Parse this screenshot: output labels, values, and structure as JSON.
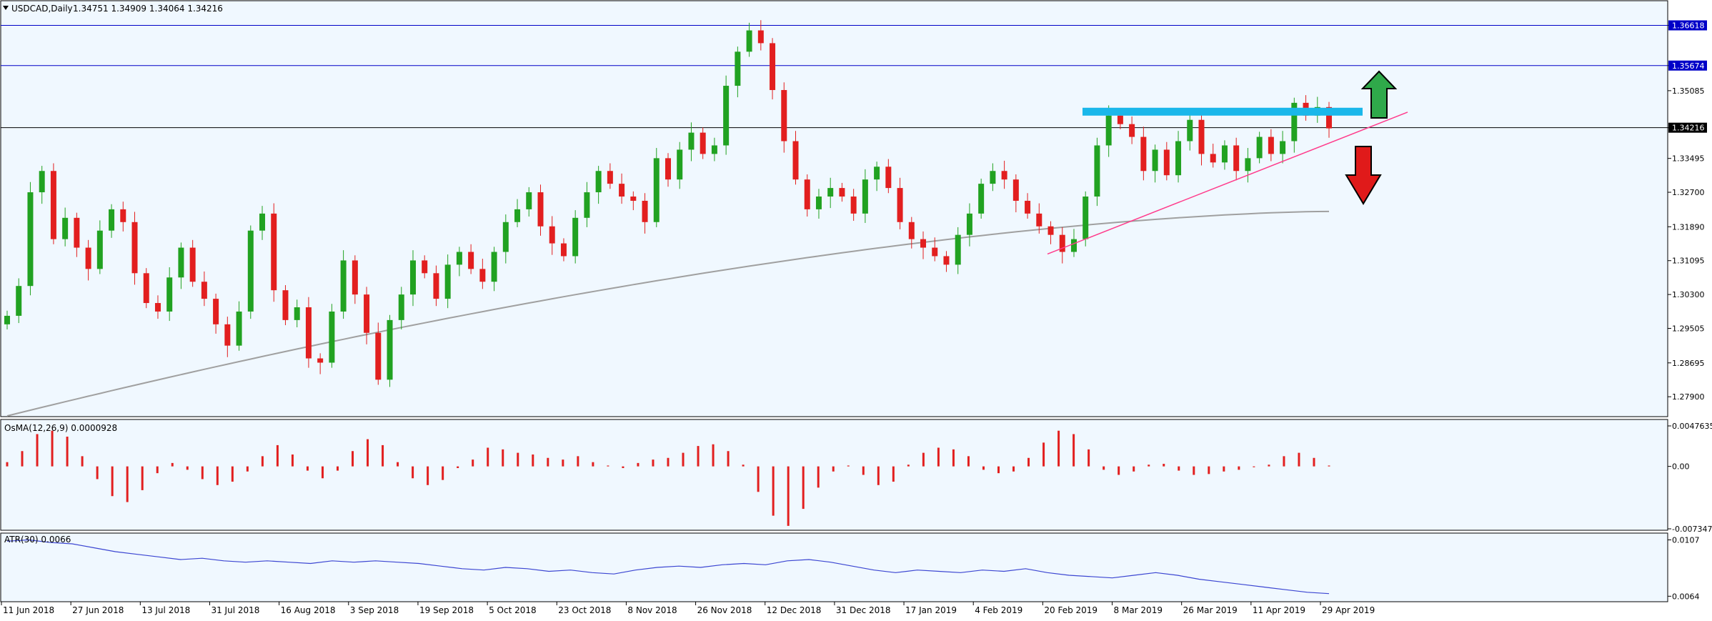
{
  "header": {
    "symbol": "USDCAD,Daily",
    "ohlc": "1.34751 1.34909 1.34064 1.34216"
  },
  "colors": {
    "background": "#f0f8ff",
    "bull": "#21a221",
    "bear": "#e21f1f",
    "ma": "#a0a0a0",
    "trendline": "#ff3c8c",
    "resistance_zone": "#1ab7ea",
    "level_line": "#0000c8",
    "atr_line": "#3c46d2",
    "arrow_up": "#2fa94a",
    "arrow_down": "#e01a1a"
  },
  "chart_data": [
    {
      "type": "candlestick",
      "title": "USDCAD,Daily",
      "symbol": "USDCAD",
      "timeframe": "Daily",
      "last_bar": {
        "open": 1.34751,
        "high": 1.34909,
        "low": 1.34064,
        "close": 1.34216
      },
      "ylim": [
        1.2745,
        1.3718
      ],
      "y_ticks": [
        "1.36618",
        "1.35674",
        "1.35085",
        "1.34216",
        "1.33495",
        "1.32700",
        "1.31890",
        "1.31095",
        "1.30300",
        "1.29505",
        "1.28695",
        "1.27900"
      ],
      "x_ticks": [
        "11 Jun 2018",
        "27 Jun 2018",
        "13 Jul 2018",
        "31 Jul 2018",
        "16 Aug 2018",
        "3 Sep 2018",
        "19 Sep 2018",
        "5 Oct 2018",
        "23 Oct 2018",
        "8 Nov 2018",
        "26 Nov 2018",
        "12 Dec 2018",
        "31 Dec 2018",
        "17 Jan 2019",
        "4 Feb 2019",
        "20 Feb 2019",
        "8 Mar 2019",
        "26 Mar 2019",
        "11 Apr 2019",
        "29 Apr 2019"
      ],
      "horizontal_levels": [
        {
          "value": 1.36618,
          "label": "1.36618",
          "style": "blue-highlight"
        },
        {
          "value": 1.35674,
          "label": "1.35674",
          "style": "blue-highlight"
        },
        {
          "value": 1.34216,
          "label": "1.34216",
          "style": "black-current-price"
        }
      ],
      "resistance_zone": {
        "value": 1.346
      },
      "trendline": {
        "from": {
          "date": "20 Feb 2019",
          "value": 1.3125
        },
        "to": {
          "date": "after 29 Apr 2019",
          "value": 1.3458
        }
      },
      "moving_average": {
        "start": 1.2745,
        "end": 1.3225
      },
      "price_path_closes": [
        1.298,
        1.305,
        1.327,
        1.332,
        1.316,
        1.321,
        1.314,
        1.309,
        1.318,
        1.323,
        1.32,
        1.308,
        1.301,
        1.299,
        1.307,
        1.314,
        1.306,
        1.302,
        1.296,
        1.291,
        1.299,
        1.318,
        1.322,
        1.304,
        1.297,
        1.3,
        1.288,
        1.287,
        1.299,
        1.311,
        1.303,
        1.294,
        1.283,
        1.297,
        1.303,
        1.311,
        1.308,
        1.302,
        1.31,
        1.313,
        1.309,
        1.306,
        1.313,
        1.32,
        1.323,
        1.327,
        1.319,
        1.315,
        1.312,
        1.321,
        1.327,
        1.332,
        1.329,
        1.326,
        1.325,
        1.32,
        1.335,
        1.33,
        1.337,
        1.341,
        1.336,
        1.338,
        1.352,
        1.36,
        1.365,
        1.362,
        1.351,
        1.339,
        1.33,
        1.323,
        1.326,
        1.328,
        1.326,
        1.322,
        1.33,
        1.333,
        1.328,
        1.32,
        1.316,
        1.314,
        1.312,
        1.31,
        1.317,
        1.322,
        1.329,
        1.332,
        1.33,
        1.325,
        1.322,
        1.319,
        1.317,
        1.313,
        1.316,
        1.326,
        1.338,
        1.345,
        1.343,
        1.34,
        1.332,
        1.337,
        1.331,
        1.339,
        1.344,
        1.336,
        1.334,
        1.338,
        1.332,
        1.335,
        1.34,
        1.336,
        1.339,
        1.348,
        1.345,
        1.347,
        1.342
      ]
    },
    {
      "type": "bar",
      "title": "OsMA(12,26,9) 0.0000928",
      "label": "OsMA(12,26,9)",
      "value_label": "0.0000928",
      "y_ticks": [
        "0.0047635",
        "0.00",
        "-0.0073477"
      ],
      "ylim": [
        -0.0073477,
        0.0047635
      ],
      "values": [
        0.0005,
        0.0018,
        0.0038,
        0.0042,
        0.0035,
        0.0012,
        -0.0015,
        -0.0035,
        -0.0042,
        -0.0028,
        -0.0008,
        0.0004,
        -0.0004,
        -0.0015,
        -0.0022,
        -0.0018,
        -0.0006,
        0.0012,
        0.0025,
        0.0014,
        -0.0005,
        -0.0014,
        -0.0005,
        0.0018,
        0.0032,
        0.0025,
        0.0005,
        -0.0014,
        -0.0022,
        -0.0016,
        -0.0002,
        0.0008,
        0.0022,
        0.002,
        0.0016,
        0.0014,
        0.001,
        0.0008,
        0.0012,
        0.0005,
        0.0001,
        -0.0002,
        0.0004,
        0.0008,
        0.001,
        0.0016,
        0.0024,
        0.0026,
        0.0018,
        0.0002,
        -0.003,
        -0.0058,
        -0.007,
        -0.005,
        -0.0025,
        -0.0006,
        0.0001,
        -0.001,
        -0.0022,
        -0.0018,
        0.0002,
        0.0016,
        0.0022,
        0.002,
        0.0012,
        -0.0004,
        -0.0008,
        -0.0006,
        0.001,
        0.0028,
        0.0042,
        0.0038,
        0.002,
        -0.0004,
        -0.001,
        -0.0006,
        0.0002,
        0.0003,
        -0.0005,
        -0.001,
        -0.0009,
        -0.0006,
        -0.0004,
        -0.0001,
        0.0002,
        0.0012,
        0.0016,
        0.001,
        0.0001
      ]
    },
    {
      "type": "line",
      "title": "ATR(30) 0.0066",
      "label": "ATR(30)",
      "value_label": "0.0066",
      "y_ticks": [
        "0.0107",
        "0.0064"
      ],
      "ylim": [
        0.0062,
        0.011
      ],
      "values": [
        0.0106,
        0.0107,
        0.0105,
        0.0104,
        0.0101,
        0.0098,
        0.0096,
        0.0094,
        0.0092,
        0.0093,
        0.0091,
        0.009,
        0.0091,
        0.009,
        0.0089,
        0.0091,
        0.009,
        0.0091,
        0.009,
        0.0089,
        0.0087,
        0.0085,
        0.0084,
        0.0086,
        0.0085,
        0.0083,
        0.0084,
        0.0082,
        0.0081,
        0.0084,
        0.0086,
        0.0087,
        0.0086,
        0.0088,
        0.0089,
        0.0088,
        0.0091,
        0.0092,
        0.009,
        0.0087,
        0.0084,
        0.0082,
        0.0084,
        0.0083,
        0.0082,
        0.0084,
        0.0083,
        0.0085,
        0.0082,
        0.008,
        0.0079,
        0.0078,
        0.008,
        0.0082,
        0.008,
        0.0077,
        0.0075,
        0.0073,
        0.0071,
        0.0069,
        0.0067,
        0.0066
      ]
    }
  ]
}
